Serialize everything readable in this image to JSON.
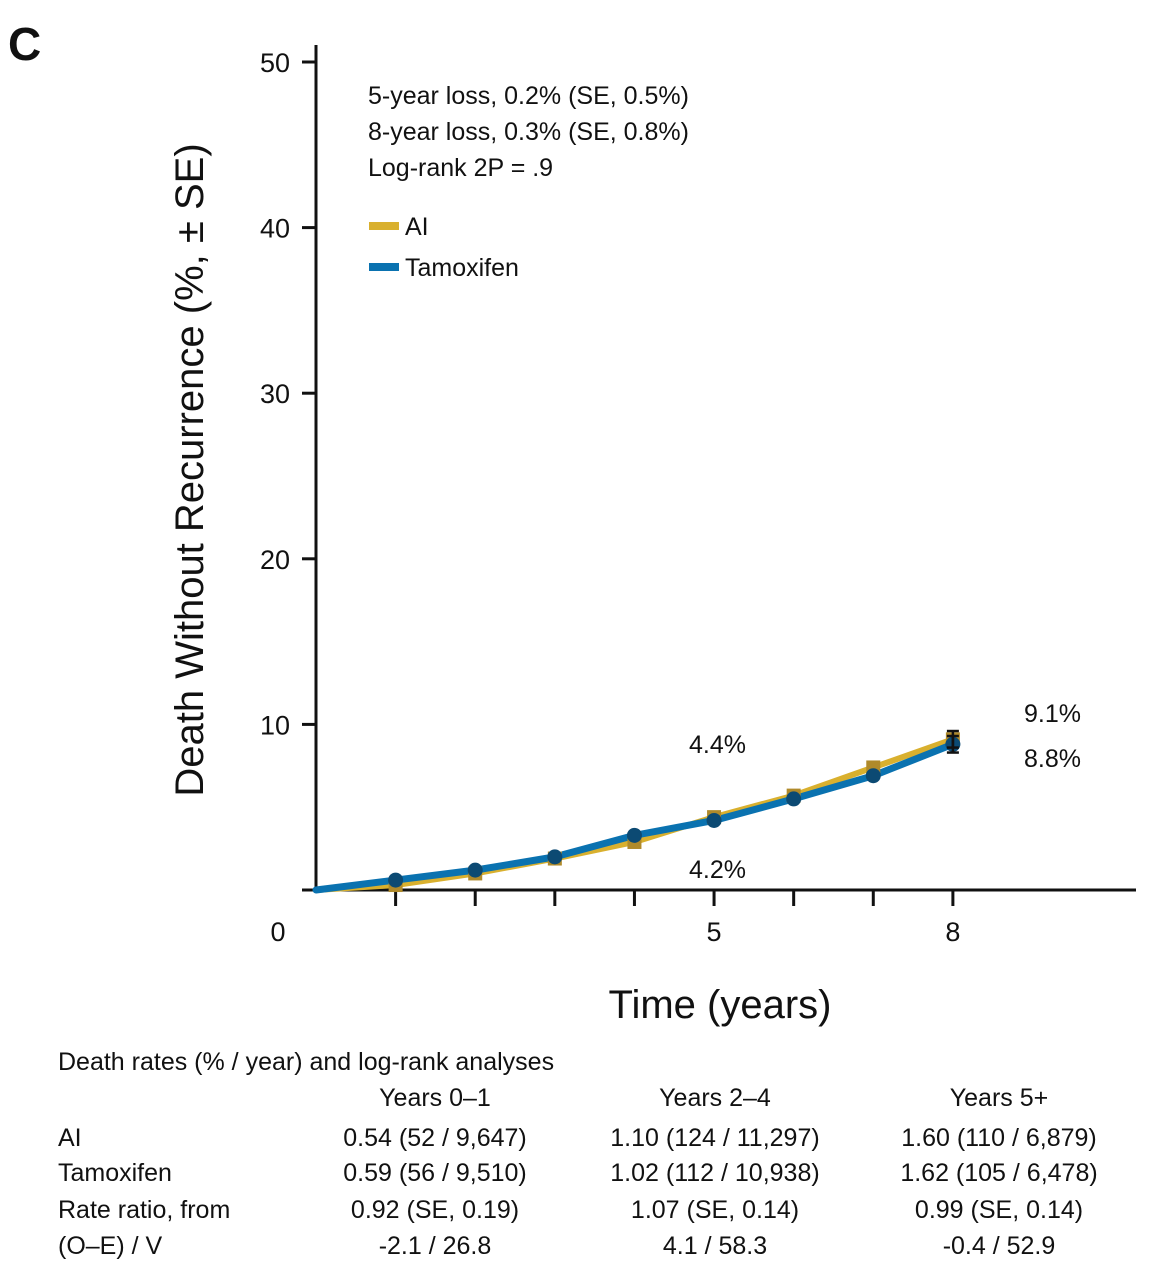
{
  "panel_label": "C",
  "chart_data": {
    "type": "line",
    "title": "",
    "xlabel": "Time (years)",
    "ylabel": "Death Without Recurrence (%, ± SE)",
    "xlim": [
      0,
      10.3
    ],
    "ylim": [
      0,
      50
    ],
    "x_ticks": [
      0,
      1,
      2,
      3,
      4,
      5,
      6,
      7,
      8
    ],
    "x_tick_labels": [
      "0",
      "",
      "",
      "",
      "",
      "5",
      "",
      "",
      "8"
    ],
    "y_ticks": [
      0,
      10,
      20,
      30,
      40,
      50
    ],
    "y_tick_labels": [
      "",
      "10",
      "20",
      "30",
      "40",
      "50"
    ],
    "series": [
      {
        "name": "AI",
        "color": "#D9B02E",
        "marker": "square",
        "x": [
          0,
          1,
          2,
          3,
          4,
          5,
          6,
          7,
          8
        ],
        "y": [
          0,
          0.3,
          1.0,
          1.9,
          2.9,
          4.4,
          5.7,
          7.4,
          9.1
        ],
        "se_at_end": 0.5
      },
      {
        "name": "Tamoxifen",
        "color": "#0A72B0",
        "marker": "circle",
        "x": [
          0,
          1,
          2,
          3,
          4,
          5,
          6,
          7,
          8
        ],
        "y": [
          0,
          0.6,
          1.2,
          2.0,
          3.3,
          4.2,
          5.5,
          6.9,
          8.8
        ],
        "se_at_end": 0.5
      }
    ],
    "annotations": [
      "5-year loss, 0.2% (SE, 0.5%)",
      "8-year loss, 0.3% (SE, 0.8%)",
      "Log-rank 2P = .9"
    ],
    "value_labels": {
      "y5_ai": "4.4%",
      "y5_tam": "4.2%",
      "y8_ai": "9.1%",
      "y8_tam": "8.8%"
    },
    "legend_position": "top-left",
    "grid": false
  },
  "table": {
    "caption": "Death rates (% / year) and log-rank analyses",
    "headers": [
      "",
      "Years 0–1",
      "Years 2–4",
      "Years 5+"
    ],
    "rows": [
      [
        "AI",
        "0.54 (52 / 9,647)",
        "1.10 (124 / 11,297)",
        "1.60 (110 / 6,879)"
      ],
      [
        "Tamoxifen",
        "0.59 (56 / 9,510)",
        "1.02 (112 / 10,938)",
        "1.62 (105 / 6,478)"
      ],
      [
        "Rate ratio, from",
        "0.92 (SE, 0.19)",
        "1.07 (SE, 0.14)",
        "0.99 (SE, 0.14)"
      ],
      [
        "(O–E) / V",
        "-2.1 / 26.8",
        "4.1 / 58.3",
        "-0.4 / 52.9"
      ]
    ]
  }
}
